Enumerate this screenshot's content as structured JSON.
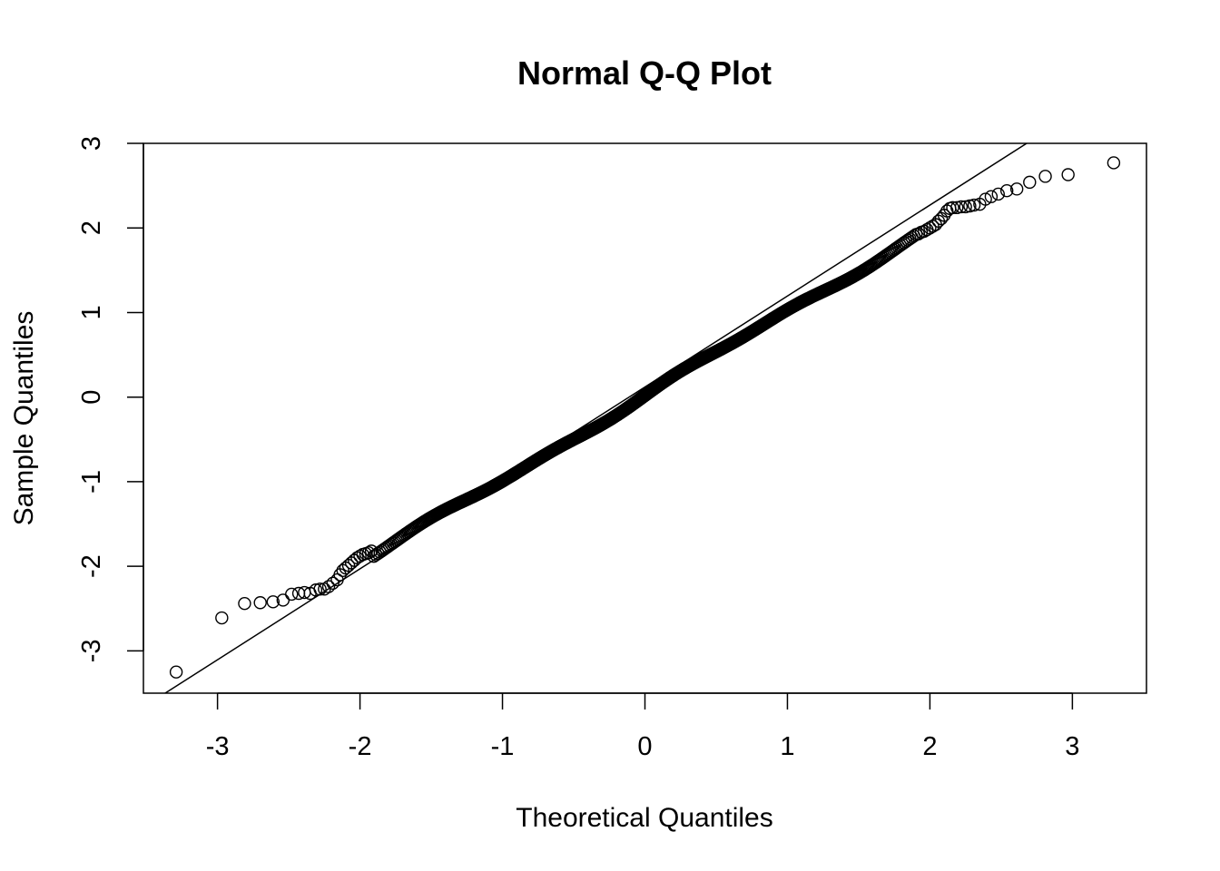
{
  "chart_data": {
    "type": "scatter",
    "title": "Normal Q-Q Plot",
    "xlabel": "Theoretical Quantiles",
    "ylabel": "Sample Quantiles",
    "xlim": [
      -3.52,
      3.52
    ],
    "ylim": [
      -3.5,
      3.0
    ],
    "x_ticks": [
      -3,
      -2,
      -1,
      0,
      1,
      2,
      3
    ],
    "x_tick_labels": [
      "-3",
      "-2",
      "-1",
      "0",
      "1",
      "2",
      "3"
    ],
    "y_ticks": [
      -3,
      -2,
      -1,
      0,
      1,
      2,
      3
    ],
    "y_tick_labels": [
      "-3",
      "-2",
      "-1",
      "0",
      "1",
      "2",
      "3"
    ],
    "grid": false,
    "legend": "none",
    "reference_line": {
      "slope": 1.075,
      "intercept": 0.12
    },
    "n_points": 1000,
    "point_style": "open-circle",
    "points": [
      {
        "x": -3.29,
        "y": -3.25
      },
      {
        "x": -2.97,
        "y": -2.61
      },
      {
        "x": -2.81,
        "y": -2.44
      },
      {
        "x": -2.7,
        "y": -2.43
      },
      {
        "x": -2.61,
        "y": -2.42
      },
      {
        "x": -2.54,
        "y": -2.4
      },
      {
        "x": -2.48,
        "y": -2.33
      },
      {
        "x": -2.43,
        "y": -2.32
      },
      {
        "x": -2.39,
        "y": -2.31
      },
      {
        "x": -2.35,
        "y": -2.32
      },
      {
        "x": -2.31,
        "y": -2.28
      },
      {
        "x": -2.28,
        "y": -2.27
      },
      {
        "x": -2.25,
        "y": -2.27
      },
      {
        "x": -2.22,
        "y": -2.24
      },
      {
        "x": -2.19,
        "y": -2.2
      },
      {
        "x": -2.16,
        "y": -2.16
      },
      {
        "x": -2.14,
        "y": -2.1
      },
      {
        "x": -2.12,
        "y": -2.05
      },
      {
        "x": -2.1,
        "y": -2.02
      },
      {
        "x": -2.08,
        "y": -1.99
      },
      {
        "x": -2.06,
        "y": -1.96
      },
      {
        "x": -2.04,
        "y": -1.93
      },
      {
        "x": -2.02,
        "y": -1.9
      },
      {
        "x": -2.0,
        "y": -1.88
      },
      {
        "x": -1.98,
        "y": -1.86
      },
      {
        "x": -1.96,
        "y": -1.85
      },
      {
        "x": -1.94,
        "y": -1.84
      },
      {
        "x": -1.92,
        "y": -1.82
      },
      {
        "x": 1.92,
        "y": 1.93
      },
      {
        "x": 1.94,
        "y": 1.95
      },
      {
        "x": 1.96,
        "y": 1.96
      },
      {
        "x": 1.98,
        "y": 1.98
      },
      {
        "x": 2.0,
        "y": 2.0
      },
      {
        "x": 2.02,
        "y": 2.02
      },
      {
        "x": 2.04,
        "y": 2.04
      },
      {
        "x": 2.06,
        "y": 2.08
      },
      {
        "x": 2.08,
        "y": 2.11
      },
      {
        "x": 2.1,
        "y": 2.15
      },
      {
        "x": 2.12,
        "y": 2.2
      },
      {
        "x": 2.14,
        "y": 2.23
      },
      {
        "x": 2.16,
        "y": 2.24
      },
      {
        "x": 2.19,
        "y": 2.24
      },
      {
        "x": 2.22,
        "y": 2.25
      },
      {
        "x": 2.25,
        "y": 2.25
      },
      {
        "x": 2.28,
        "y": 2.26
      },
      {
        "x": 2.31,
        "y": 2.27
      },
      {
        "x": 2.35,
        "y": 2.28
      },
      {
        "x": 2.39,
        "y": 2.34
      },
      {
        "x": 2.43,
        "y": 2.37
      },
      {
        "x": 2.48,
        "y": 2.4
      },
      {
        "x": 2.54,
        "y": 2.44
      },
      {
        "x": 2.61,
        "y": 2.46
      },
      {
        "x": 2.7,
        "y": 2.54
      },
      {
        "x": 2.81,
        "y": 2.61
      },
      {
        "x": 2.97,
        "y": 2.63
      },
      {
        "x": 3.29,
        "y": 2.77
      }
    ]
  }
}
